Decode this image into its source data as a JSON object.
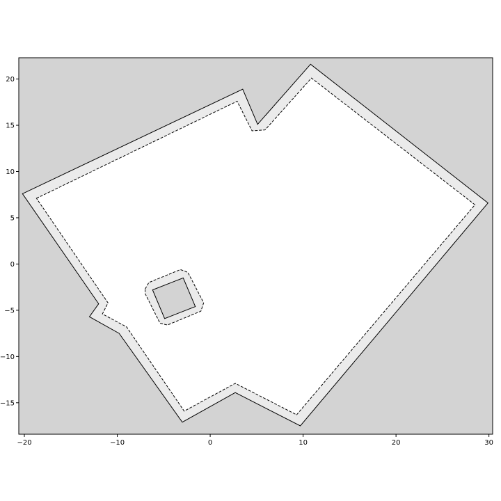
{
  "chart_data": {
    "type": "area",
    "title": "",
    "xlabel": "",
    "ylabel": "",
    "xlim": [
      -20.6,
      30.4
    ],
    "ylim": [
      -18.4,
      22.3
    ],
    "grid": false,
    "x_ticks": [
      -20,
      -10,
      0,
      10,
      20,
      30
    ],
    "y_ticks": [
      -15,
      -10,
      -5,
      0,
      5,
      10,
      15,
      20
    ],
    "x_tick_labels": [
      "−20",
      "−10",
      "0",
      "10",
      "20",
      "30"
    ],
    "y_tick_labels": [
      "−15",
      "−10",
      "−5",
      "0",
      "5",
      "10",
      "15",
      "20"
    ],
    "colors": {
      "background": "#d3d3d3",
      "buffer_zone": "#ebebeb",
      "free_space": "#ffffff",
      "outline": "#000000"
    },
    "outer_boundary": [
      [
        -20.2,
        7.6
      ],
      [
        3.5,
        18.9
      ],
      [
        5.1,
        15.1
      ],
      [
        10.8,
        21.6
      ],
      [
        29.9,
        6.6
      ],
      [
        9.7,
        -17.5
      ],
      [
        2.7,
        -13.9
      ],
      [
        -3.0,
        -17.1
      ],
      [
        -9.8,
        -7.5
      ],
      [
        -13.0,
        -5.7
      ],
      [
        -12.0,
        -4.3
      ]
    ],
    "inner_boundary": [
      [
        -18.7,
        7.1
      ],
      [
        2.9,
        17.6
      ],
      [
        4.5,
        14.4
      ],
      [
        5.9,
        14.5
      ],
      [
        10.9,
        20.1
      ],
      [
        28.5,
        6.4
      ],
      [
        9.3,
        -16.3
      ],
      [
        2.7,
        -12.9
      ],
      [
        -2.8,
        -15.9
      ],
      [
        -9.0,
        -6.8
      ],
      [
        -11.6,
        -5.4
      ],
      [
        -11.0,
        -4.2
      ]
    ],
    "obstacle": [
      [
        -6.2,
        -2.8
      ],
      [
        -2.9,
        -1.5
      ],
      [
        -1.6,
        -4.6
      ],
      [
        -4.9,
        -5.9
      ]
    ],
    "obstacle_buffer": [
      [
        -7.0,
        -2.7
      ],
      [
        -6.6,
        -2.0
      ],
      [
        -3.2,
        -0.6
      ],
      [
        -2.4,
        -0.9
      ],
      [
        -0.7,
        -4.2
      ],
      [
        -1.0,
        -5.1
      ],
      [
        -4.6,
        -6.6
      ],
      [
        -5.4,
        -6.4
      ],
      [
        -7.0,
        -3.2
      ]
    ]
  }
}
